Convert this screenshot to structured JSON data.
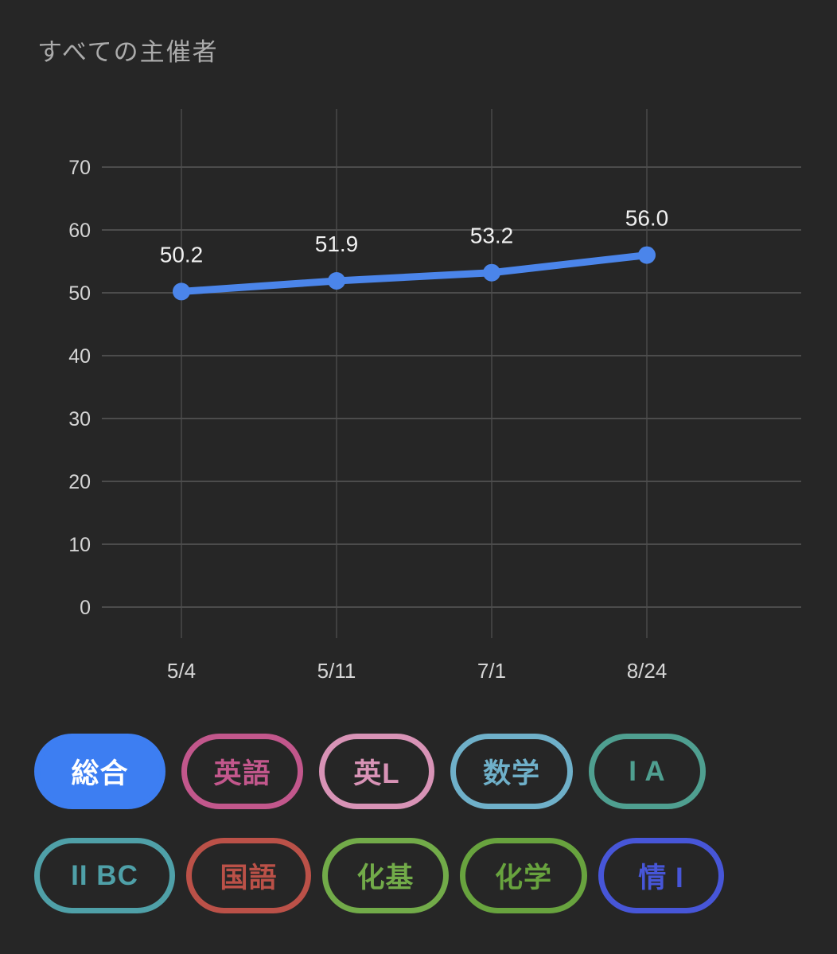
{
  "page": {
    "title": "すべての主催者",
    "background_color": "#262626"
  },
  "chart_data": {
    "type": "line",
    "title": "すべての主催者",
    "x": [
      "5/4",
      "5/11",
      "7/1",
      "8/24"
    ],
    "series": [
      {
        "name": "総合",
        "color": "#4b85ea",
        "values": [
          50.2,
          51.9,
          53.2,
          56.0
        ]
      }
    ],
    "point_labels": [
      "50.2",
      "51.9",
      "53.2",
      "56.0"
    ],
    "xlabel": "",
    "ylabel": "",
    "y_ticks": [
      0,
      10,
      20,
      30,
      40,
      50,
      60,
      70
    ],
    "ylim": [
      0,
      79
    ],
    "grid": true,
    "legend_position": "none",
    "colors": {
      "grid_h": "#585858",
      "grid_v": "#4e4e4e",
      "tick_label": "#d4d4d4",
      "point_label": "#f1f1f1"
    }
  },
  "subjects": {
    "selected_text_color": "#ffffff",
    "rows": [
      [
        {
          "id": "sogo",
          "label": "総合",
          "color": "#3d7ef2",
          "selected": true
        },
        {
          "id": "eigo",
          "label": "英語",
          "color": "#c2578c",
          "selected": false
        },
        {
          "id": "ei-listening",
          "label": "英L",
          "color": "#d893b6",
          "selected": false
        },
        {
          "id": "sugaku",
          "label": "数学",
          "color": "#6fb0c9",
          "selected": false
        },
        {
          "id": "math-1a",
          "label": "I A",
          "color": "#4f9f90",
          "selected": false
        }
      ],
      [
        {
          "id": "math-2bc",
          "label": "II BC",
          "color": "#4fa0a8",
          "selected": false
        },
        {
          "id": "kokugo",
          "label": "国語",
          "color": "#bb5148",
          "selected": false
        },
        {
          "id": "kagaku-kiso",
          "label": "化基",
          "color": "#72ab49",
          "selected": false
        },
        {
          "id": "kagaku",
          "label": "化学",
          "color": "#68a33e",
          "selected": false
        },
        {
          "id": "joho-1",
          "label": "情 I",
          "color": "#4756d8",
          "selected": false
        }
      ]
    ]
  }
}
